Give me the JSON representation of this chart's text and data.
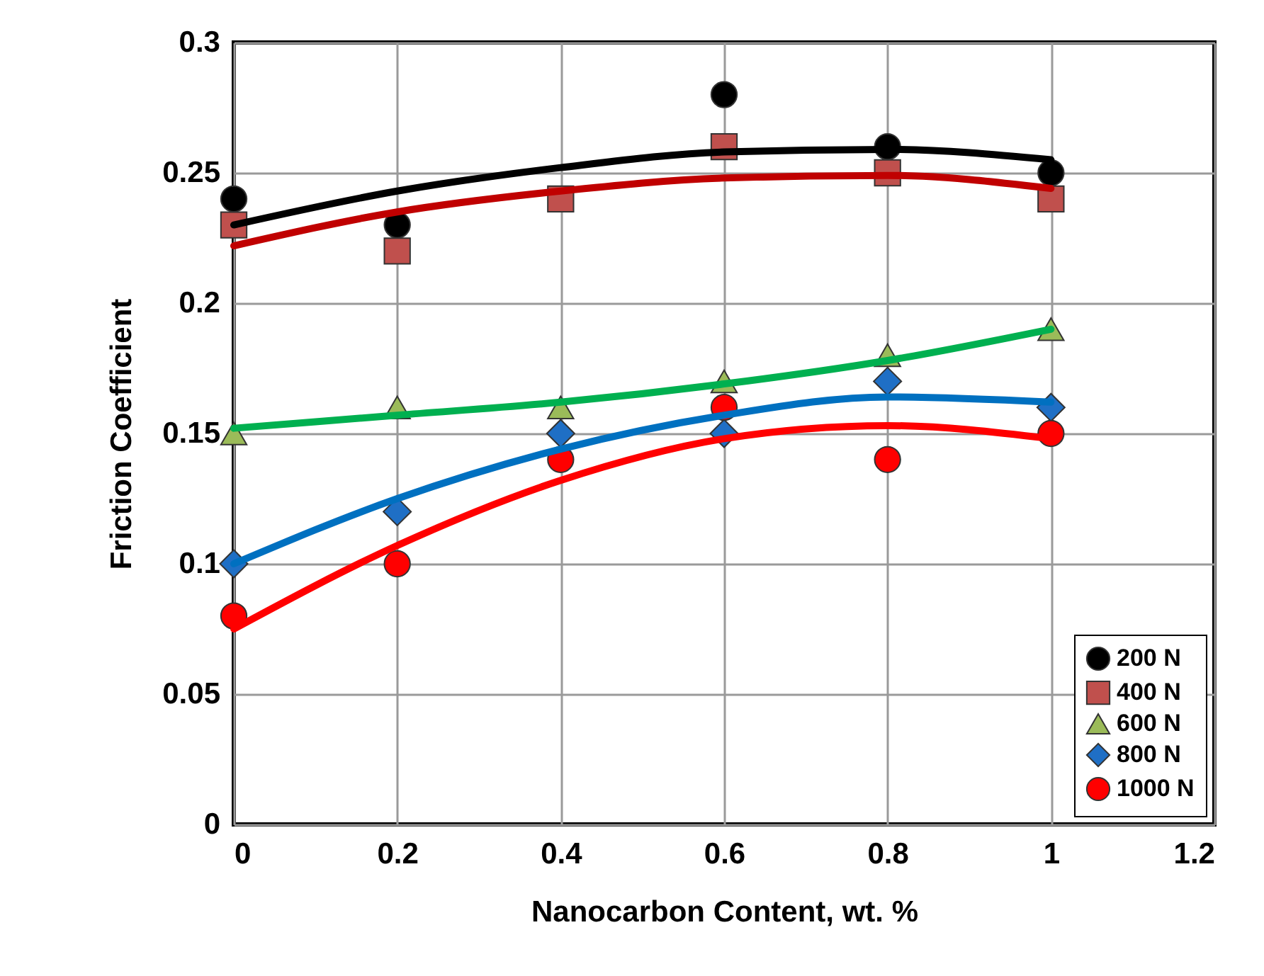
{
  "chart_data": {
    "type": "scatter",
    "xlabel": "Nanocarbon Content, wt. %",
    "ylabel": "Friction Coefficient",
    "x": [
      0,
      0.2,
      0.4,
      0.6,
      0.8,
      1
    ],
    "xlim": [
      0,
      1.2
    ],
    "xticks": [
      0,
      0.2,
      0.4,
      0.6,
      0.8,
      1,
      1.2
    ],
    "ylim": [
      0,
      0.3
    ],
    "yticks": [
      0,
      0.05,
      0.1,
      0.15,
      0.2,
      0.25,
      0.3
    ],
    "grid": true,
    "legend": "bottom right",
    "series": [
      {
        "type": "line",
        "color": "#000000",
        "x": [
          0,
          0.2,
          0.4,
          0.6,
          0.8,
          1
        ],
        "values": [
          0.23,
          0.243,
          0.252,
          0.258,
          0.259,
          0.255
        ]
      },
      {
        "type": "line",
        "color": "#c00000",
        "x": [
          0,
          0.2,
          0.4,
          0.6,
          0.8,
          1
        ],
        "values": [
          0.222,
          0.235,
          0.243,
          0.248,
          0.249,
          0.244
        ]
      },
      {
        "type": "line",
        "color": "#00b050",
        "x": [
          0,
          0.2,
          0.4,
          0.6,
          0.8,
          1
        ],
        "values": [
          0.152,
          0.157,
          0.162,
          0.169,
          0.178,
          0.19
        ]
      },
      {
        "type": "line",
        "color": "#0070c0",
        "x": [
          0,
          0.2,
          0.4,
          0.6,
          0.8,
          1
        ],
        "values": [
          0.1,
          0.125,
          0.144,
          0.157,
          0.164,
          0.162
        ]
      },
      {
        "type": "line",
        "color": "#ff0000",
        "x": [
          0,
          0.2,
          0.4,
          0.6,
          0.8,
          1
        ],
        "values": [
          0.075,
          0.107,
          0.132,
          0.148,
          0.153,
          0.148
        ]
      },
      {
        "name": "200 N",
        "color": "#000000",
        "marker": "circle",
        "values": [
          0.24,
          0.23,
          null,
          0.28,
          0.26,
          0.25
        ]
      },
      {
        "name": "400 N",
        "color": "#c0504d",
        "marker": "square",
        "values": [
          0.23,
          0.22,
          0.24,
          0.26,
          0.25,
          0.24
        ]
      },
      {
        "name": "600 N",
        "color": "#9bbb59",
        "marker": "triangle",
        "values": [
          0.15,
          0.16,
          0.16,
          0.17,
          0.18,
          0.19
        ]
      },
      {
        "name": "800 N",
        "color": "#1f6fc5",
        "marker": "diamond",
        "values": [
          0.1,
          0.12,
          0.15,
          0.15,
          0.17,
          0.16
        ]
      },
      {
        "name": "1000 N",
        "color": "#ff0000",
        "marker": "circle",
        "values": [
          0.08,
          0.1,
          0.14,
          0.16,
          0.14,
          0.15
        ]
      }
    ]
  }
}
